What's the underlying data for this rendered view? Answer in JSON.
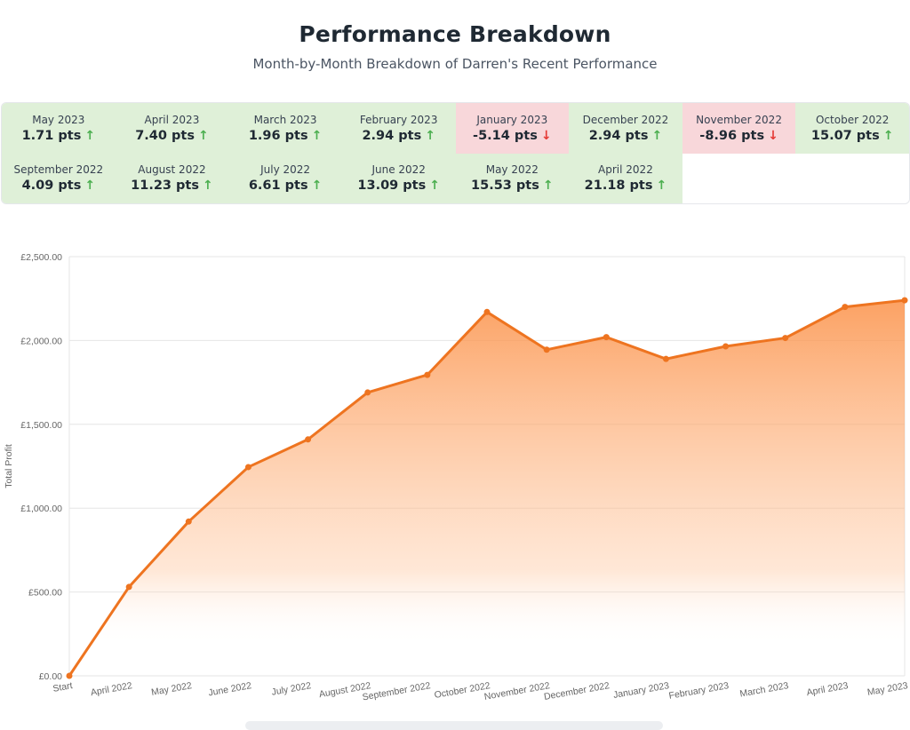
{
  "header": {
    "title": "Performance Breakdown",
    "subtitle": "Month-by-Month Breakdown of Darren's Recent Performance"
  },
  "colors": {
    "positive_bg": "#dff0d8",
    "negative_bg": "#f8d7da",
    "up_arrow": "#4caf50",
    "down_arrow": "#e53935",
    "line": "#ee7420"
  },
  "months": [
    {
      "month": "May 2023",
      "value": "1.71 pts",
      "direction": "up"
    },
    {
      "month": "April 2023",
      "value": "7.40 pts",
      "direction": "up"
    },
    {
      "month": "March 2023",
      "value": "1.96 pts",
      "direction": "up"
    },
    {
      "month": "February 2023",
      "value": "2.94 pts",
      "direction": "up"
    },
    {
      "month": "January 2023",
      "value": "-5.14 pts",
      "direction": "down"
    },
    {
      "month": "December 2022",
      "value": "2.94 pts",
      "direction": "up"
    },
    {
      "month": "November 2022",
      "value": "-8.96 pts",
      "direction": "down"
    },
    {
      "month": "October 2022",
      "value": "15.07 pts",
      "direction": "up"
    },
    {
      "month": "September 2022",
      "value": "4.09 pts",
      "direction": "up"
    },
    {
      "month": "August 2022",
      "value": "11.23 pts",
      "direction": "up"
    },
    {
      "month": "July 2022",
      "value": "6.61 pts",
      "direction": "up"
    },
    {
      "month": "June 2022",
      "value": "13.09 pts",
      "direction": "up"
    },
    {
      "month": "May 2022",
      "value": "15.53 pts",
      "direction": "up"
    },
    {
      "month": "April 2022",
      "value": "21.18 pts",
      "direction": "up"
    }
  ],
  "chart_data": {
    "type": "area",
    "title": "",
    "xlabel": "",
    "ylabel": "Total Profit",
    "ylim": [
      0,
      2500
    ],
    "yticks": [
      0,
      500,
      1000,
      1500,
      2000,
      2500
    ],
    "ytick_labels": [
      "£0.00",
      "£500.00",
      "£1,000.00",
      "£1,500.00",
      "£2,000.00",
      "£2,500.00"
    ],
    "categories": [
      "Start",
      "April 2022",
      "May 2022",
      "June 2022",
      "July 2022",
      "August 2022",
      "September 2022",
      "October 2022",
      "November 2022",
      "December 2022",
      "January 2023",
      "February 2023",
      "March 2023",
      "April 2023",
      "May 2023"
    ],
    "series": [
      {
        "values": [
          0,
          530,
          920,
          1245,
          1410,
          1690,
          1795,
          2170,
          1945,
          2020,
          1890,
          1965,
          2015,
          2200,
          2240
        ]
      }
    ],
    "grid": true,
    "legend": "none"
  }
}
